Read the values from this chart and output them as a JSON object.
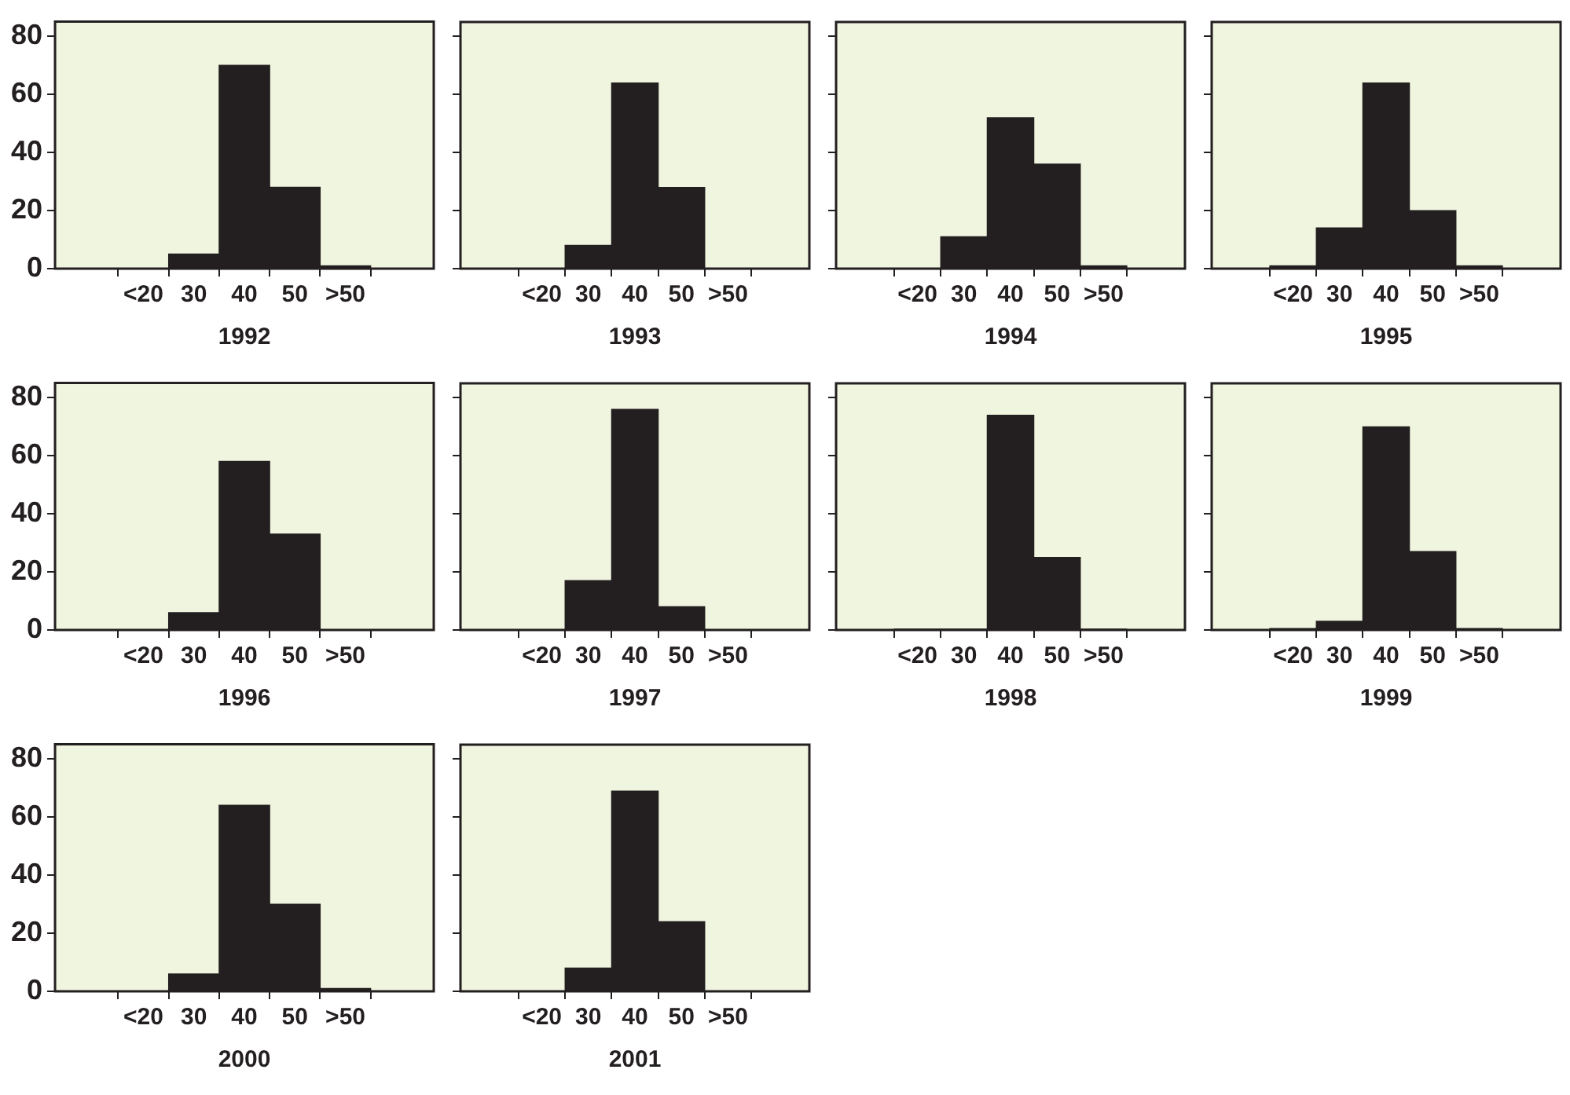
{
  "chart_data": [
    {
      "type": "bar",
      "xlabel": "1992",
      "categories": [
        "<20",
        "30",
        "40",
        "50",
        ">50"
      ],
      "values": [
        0,
        5,
        70,
        28,
        1
      ],
      "color": "#231f20",
      "ylim": [
        0,
        85
      ],
      "yticks": [
        0,
        20,
        40,
        60,
        80
      ],
      "grid": false
    },
    {
      "type": "bar",
      "xlabel": "1993",
      "categories": [
        "<20",
        "30",
        "40",
        "50",
        ">50"
      ],
      "values": [
        0,
        8,
        64,
        28,
        0
      ],
      "color": "#231f20",
      "ylim": [
        0,
        85
      ],
      "yticks": [
        0,
        20,
        40,
        60,
        80
      ],
      "grid": false,
      "tick_labels": "x"
    },
    {
      "type": "bar",
      "xlabel": "1994",
      "categories": [
        "<20",
        "30",
        "40",
        "50",
        ">50"
      ],
      "values": [
        0,
        11,
        52,
        36,
        1
      ],
      "color": "#231f20",
      "ylim": [
        0,
        85
      ],
      "yticks": [
        0,
        20,
        40,
        60,
        80
      ],
      "grid": false,
      "tick_labels": "x"
    },
    {
      "type": "bar",
      "xlabel": "1995",
      "categories": [
        "<20",
        "30",
        "40",
        "50",
        ">50"
      ],
      "values": [
        1,
        14,
        64,
        20,
        1
      ],
      "color": "#231f20",
      "ylim": [
        0,
        85
      ],
      "yticks": [
        0,
        20,
        40,
        60,
        80
      ],
      "grid": false,
      "tick_labels": "x"
    },
    {
      "type": "bar",
      "xlabel": "1996",
      "categories": [
        "<20",
        "30",
        "40",
        "50",
        ">50"
      ],
      "values": [
        0,
        6,
        58,
        33,
        0
      ],
      "color": "#231f20",
      "ylim": [
        0,
        85
      ],
      "yticks": [
        0,
        20,
        40,
        60,
        80
      ],
      "grid": false
    },
    {
      "type": "bar",
      "xlabel": "1997",
      "categories": [
        "<20",
        "30",
        "40",
        "50",
        ">50"
      ],
      "values": [
        0,
        17,
        76,
        8,
        0
      ],
      "color": "#231f20",
      "ylim": [
        0,
        85
      ],
      "yticks": [
        0,
        20,
        40,
        60,
        80
      ],
      "grid": false,
      "tick_labels": "x"
    },
    {
      "type": "bar",
      "xlabel": "1998",
      "categories": [
        "<20",
        "30",
        "40",
        "50",
        ">50"
      ],
      "values": [
        0.3,
        0.3,
        74,
        25,
        0.3
      ],
      "color": "#231f20",
      "ylim": [
        0,
        85
      ],
      "yticks": [
        0,
        20,
        40,
        60,
        80
      ],
      "grid": false,
      "tick_labels": "x"
    },
    {
      "type": "bar",
      "xlabel": "1999",
      "categories": [
        "<20",
        "30",
        "40",
        "50",
        ">50"
      ],
      "values": [
        0.5,
        3,
        70,
        27,
        0.5
      ],
      "color": "#231f20",
      "ylim": [
        0,
        85
      ],
      "yticks": [
        0,
        20,
        40,
        60,
        80
      ],
      "grid": false,
      "tick_labels": "x"
    },
    {
      "type": "bar",
      "xlabel": "2000",
      "categories": [
        "<20",
        "30",
        "40",
        "50",
        ">50"
      ],
      "values": [
        0,
        6,
        64,
        30,
        1
      ],
      "color": "#231f20",
      "ylim": [
        0,
        85
      ],
      "yticks": [
        0,
        20,
        40,
        60,
        80
      ],
      "grid": false
    },
    {
      "type": "bar",
      "xlabel": "2001",
      "categories": [
        "<20",
        "30",
        "40",
        "50",
        ">50"
      ],
      "values": [
        0,
        8,
        69,
        24,
        0
      ],
      "color": "#231f20",
      "ylim": [
        0,
        85
      ],
      "yticks": [
        0,
        20,
        40,
        60,
        80
      ],
      "grid": false,
      "tick_labels": "x"
    }
  ]
}
